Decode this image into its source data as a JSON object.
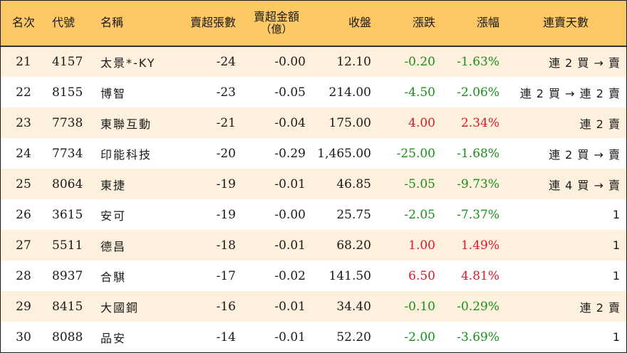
{
  "headers": {
    "rank": "名次",
    "code": "代號",
    "name": "名稱",
    "sell_volume": "賣超張數",
    "sell_amount": "賣超金額",
    "sell_amount_unit": "（億）",
    "close": "收盤",
    "change": "漲跌",
    "change_pct": "漲幅",
    "streak": "連賣天數"
  },
  "rows": [
    {
      "rank": "21",
      "code": "4157",
      "name": "太景*-KY",
      "volume": "-24",
      "amount": "-0.00",
      "close": "12.10",
      "change": "-0.20",
      "pct": "-1.63%",
      "streak": "連 2 買 → 賣",
      "dir": "down"
    },
    {
      "rank": "22",
      "code": "8155",
      "name": "博智",
      "volume": "-23",
      "amount": "-0.05",
      "close": "214.00",
      "change": "-4.50",
      "pct": "-2.06%",
      "streak": "連 2 買 → 連 2 賣",
      "dir": "down"
    },
    {
      "rank": "23",
      "code": "7738",
      "name": "東聯互動",
      "volume": "-21",
      "amount": "-0.04",
      "close": "175.00",
      "change": "4.00",
      "pct": "2.34%",
      "streak": "連 2 賣",
      "dir": "up"
    },
    {
      "rank": "24",
      "code": "7734",
      "name": "印能科技",
      "volume": "-20",
      "amount": "-0.29",
      "close": "1,465.00",
      "change": "-25.00",
      "pct": "-1.68%",
      "streak": "連 2 買 → 賣",
      "dir": "down"
    },
    {
      "rank": "25",
      "code": "8064",
      "name": "東捷",
      "volume": "-19",
      "amount": "-0.01",
      "close": "46.85",
      "change": "-5.05",
      "pct": "-9.73%",
      "streak": "連 4 買 → 賣",
      "dir": "down"
    },
    {
      "rank": "26",
      "code": "3615",
      "name": "安可",
      "volume": "-19",
      "amount": "-0.00",
      "close": "25.75",
      "change": "-2.05",
      "pct": "-7.37%",
      "streak": "1",
      "dir": "down"
    },
    {
      "rank": "27",
      "code": "5511",
      "name": "德昌",
      "volume": "-18",
      "amount": "-0.01",
      "close": "68.20",
      "change": "1.00",
      "pct": "1.49%",
      "streak": "1",
      "dir": "up"
    },
    {
      "rank": "28",
      "code": "8937",
      "name": "合騏",
      "volume": "-17",
      "amount": "-0.02",
      "close": "141.50",
      "change": "6.50",
      "pct": "4.81%",
      "streak": "1",
      "dir": "up"
    },
    {
      "rank": "29",
      "code": "8415",
      "name": "大國鋼",
      "volume": "-16",
      "amount": "-0.01",
      "close": "34.40",
      "change": "-0.10",
      "pct": "-0.29%",
      "streak": "連 2 賣",
      "dir": "down"
    },
    {
      "rank": "30",
      "code": "8088",
      "name": "品安",
      "volume": "-14",
      "amount": "-0.01",
      "close": "52.20",
      "change": "-2.00",
      "pct": "-3.69%",
      "streak": "1",
      "dir": "down"
    }
  ],
  "colors": {
    "header_bg": "#fcc865",
    "stripe_bg": "#fdf1dd",
    "up": "#e0162b",
    "down": "#1a8f1a"
  }
}
